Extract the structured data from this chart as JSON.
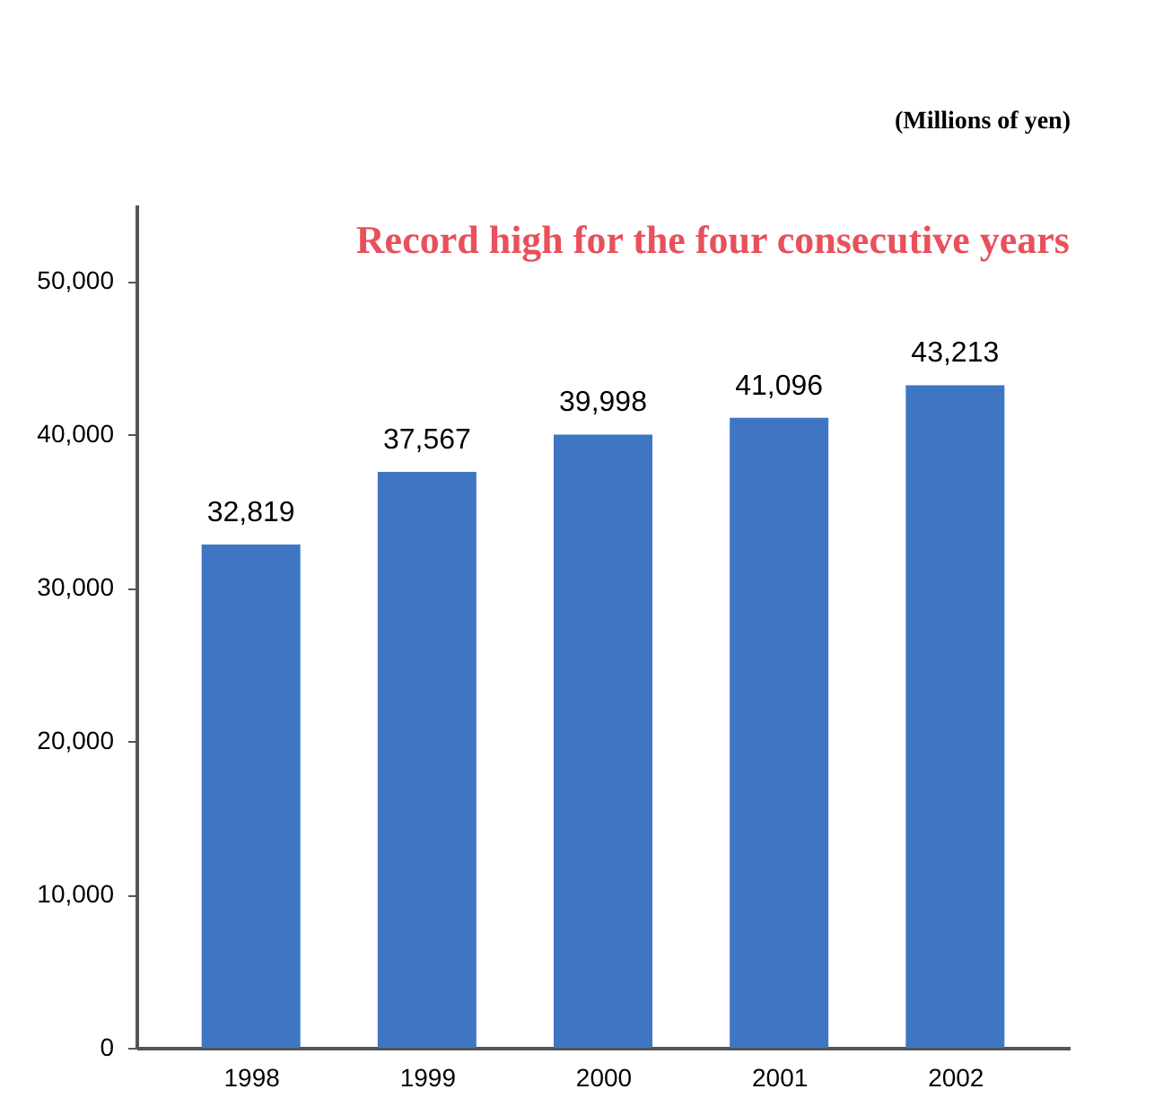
{
  "chart_data": {
    "type": "bar",
    "title": "Record high for the four consecutive years",
    "ylabel": "(Millions of yen)",
    "categories": [
      "1998",
      "1999",
      "2000",
      "2001",
      "2002"
    ],
    "values": [
      32819,
      37567,
      39998,
      41096,
      43213
    ],
    "value_labels": [
      "32,819",
      "37,567",
      "39,998",
      "41,096",
      "43,213"
    ],
    "color": "#3f76c4",
    "ylim": [
      0,
      55000
    ],
    "yticks": [
      0,
      {
        "value": 10000,
        "label": "10,000"
      },
      {
        "value": 20000,
        "label": "20,000"
      },
      {
        "value": 30000,
        "label": "30,000"
      },
      {
        "value": 40000,
        "label": "40,000"
      },
      {
        "value": 50000,
        "label": "50,000"
      }
    ],
    "grid": false
  }
}
